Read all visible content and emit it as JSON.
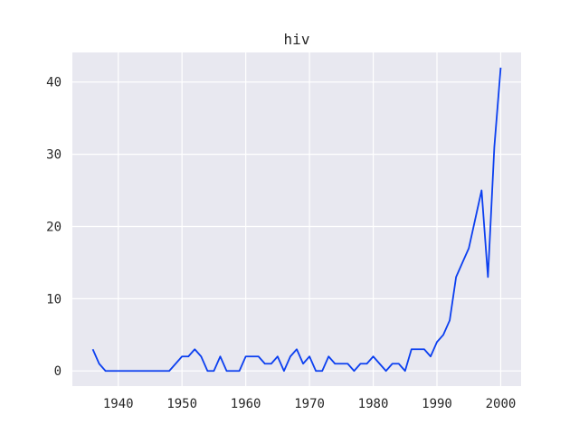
{
  "chart_data": {
    "type": "line",
    "title": "hiv",
    "xlabel": "",
    "ylabel": "",
    "xlim": [
      1932.8,
      2003.2
    ],
    "ylim": [
      -2.1,
      44.1
    ],
    "xticks": [
      1940,
      1950,
      1960,
      1970,
      1980,
      1990,
      2000
    ],
    "yticks": [
      0,
      10,
      20,
      30,
      40
    ],
    "grid": true,
    "background": "#e8e8f0",
    "series": [
      {
        "color": "#0b3ff0",
        "x": [
          1936,
          1937,
          1938,
          1939,
          1940,
          1941,
          1942,
          1943,
          1944,
          1945,
          1946,
          1947,
          1948,
          1949,
          1950,
          1951,
          1952,
          1953,
          1954,
          1955,
          1956,
          1957,
          1958,
          1959,
          1960,
          1961,
          1962,
          1963,
          1964,
          1965,
          1966,
          1967,
          1968,
          1969,
          1970,
          1971,
          1972,
          1973,
          1974,
          1975,
          1976,
          1977,
          1978,
          1979,
          1980,
          1981,
          1982,
          1983,
          1984,
          1985,
          1986,
          1987,
          1988,
          1989,
          1990,
          1991,
          1992,
          1993,
          1994,
          1995,
          1996,
          1997,
          1998,
          1999,
          2000
        ],
        "y": [
          3,
          1,
          0,
          0,
          0,
          0,
          0,
          0,
          0,
          0,
          0,
          0,
          0,
          1,
          2,
          2,
          3,
          2,
          0,
          0,
          2,
          0,
          0,
          0,
          2,
          2,
          2,
          1,
          1,
          2,
          0,
          2,
          3,
          1,
          2,
          0,
          0,
          2,
          1,
          1,
          1,
          0,
          1,
          1,
          2,
          1,
          0,
          1,
          1,
          0,
          3,
          3,
          3,
          2,
          4,
          5,
          7,
          13,
          15,
          17,
          21,
          25,
          13,
          31,
          42
        ]
      }
    ]
  }
}
